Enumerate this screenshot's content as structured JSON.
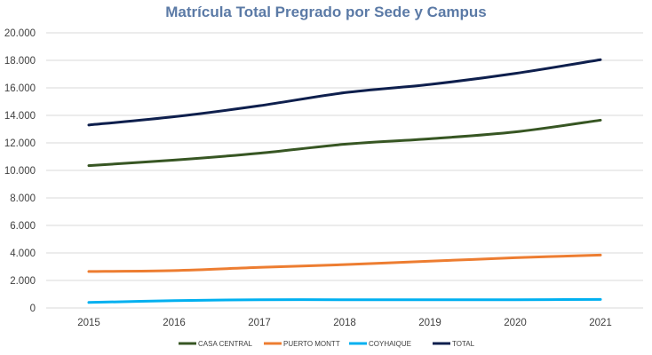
{
  "chart_data": {
    "type": "line",
    "title": "Matrícula Total Pregrado por Sede y Campus",
    "xlabel": "",
    "ylabel": "",
    "categories": [
      "2015",
      "2016",
      "2017",
      "2018",
      "2019",
      "2020",
      "2021"
    ],
    "ylim": [
      0,
      20000
    ],
    "yticks": [
      0,
      2000,
      4000,
      6000,
      8000,
      10000,
      12000,
      14000,
      16000,
      18000,
      20000
    ],
    "ytick_labels": [
      "0",
      "2.000",
      "4.000",
      "6.000",
      "8.000",
      "10.000",
      "12.000",
      "14.000",
      "16.000",
      "18.000",
      "20.000"
    ],
    "grid": true,
    "legend_position": "bottom",
    "series": [
      {
        "name": "CASA CENTRAL",
        "color": "#375623",
        "values": [
          10350,
          10750,
          11250,
          11900,
          12300,
          12800,
          13650
        ]
      },
      {
        "name": "PUERTO MONTT",
        "color": "#ed7d31",
        "values": [
          2650,
          2720,
          2950,
          3150,
          3400,
          3650,
          3850
        ]
      },
      {
        "name": "COYHAIQUE",
        "color": "#00b0f0",
        "values": [
          400,
          530,
          600,
          600,
          600,
          600,
          620
        ]
      },
      {
        "name": "TOTAL",
        "color": "#0e1f4d",
        "values": [
          13300,
          13900,
          14700,
          15650,
          16250,
          17050,
          18050
        ]
      }
    ]
  }
}
